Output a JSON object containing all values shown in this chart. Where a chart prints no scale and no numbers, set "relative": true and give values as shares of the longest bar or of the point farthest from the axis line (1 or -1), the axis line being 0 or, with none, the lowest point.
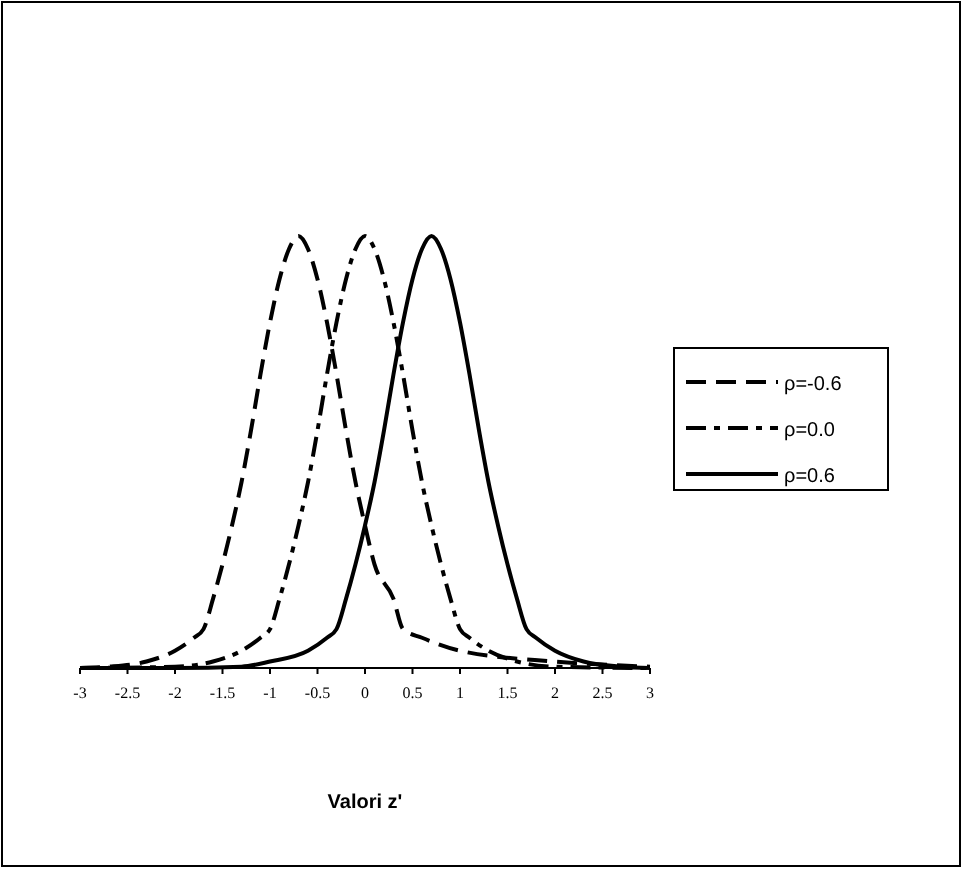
{
  "chart_data": {
    "type": "line",
    "relative": true,
    "xlabel": "Valori z'",
    "xlim": [
      -3,
      3
    ],
    "xticks": [
      -3,
      -2.5,
      -2,
      -1.5,
      -1,
      -0.5,
      0,
      0.5,
      1,
      1.5,
      2,
      2.5,
      3
    ],
    "legend": "right",
    "grid": false,
    "marker": "none",
    "series": [
      {
        "name": "ρ=-0.6",
        "color": "#000000",
        "line_style": "dashed",
        "x": [
          -3,
          -2.7,
          -2.3,
          -2,
          -1.8,
          -1.7,
          -1.6,
          -1.5,
          -1.4,
          -1.3,
          -1.2,
          -1.1,
          -1,
          -0.9,
          -0.8,
          -0.7,
          -0.6,
          -0.5,
          -0.4,
          -0.3,
          -0.2,
          -0.1,
          0,
          0.1,
          0.3,
          0.4,
          0.6,
          1,
          2,
          3
        ],
        "values": [
          0,
          0.003,
          0.015,
          0.04,
          0.07,
          0.09,
          0.16,
          0.24,
          0.33,
          0.43,
          0.55,
          0.68,
          0.8,
          0.9,
          0.97,
          1,
          0.97,
          0.9,
          0.8,
          0.68,
          0.55,
          0.43,
          0.33,
          0.24,
          0.16,
          0.09,
          0.07,
          0.04,
          0.015,
          0.003
        ]
      },
      {
        "name": "ρ=0.0",
        "color": "#000000",
        "line_style": "dashdot",
        "x": [
          -3,
          -2,
          -1.6,
          -1.3,
          -1.1,
          -1,
          -0.9,
          -0.8,
          -0.7,
          -0.6,
          -0.5,
          -0.4,
          -0.3,
          -0.2,
          -0.1,
          0,
          0.1,
          0.2,
          0.3,
          0.4,
          0.5,
          0.6,
          0.7,
          0.8,
          0.9,
          1,
          1.1,
          1.3,
          1.6,
          2,
          3
        ],
        "values": [
          0,
          0.003,
          0.015,
          0.04,
          0.07,
          0.09,
          0.16,
          0.24,
          0.33,
          0.43,
          0.55,
          0.68,
          0.8,
          0.9,
          0.97,
          1,
          0.97,
          0.9,
          0.8,
          0.68,
          0.55,
          0.43,
          0.33,
          0.24,
          0.16,
          0.09,
          0.07,
          0.04,
          0.015,
          0.003,
          0
        ]
      },
      {
        "name": "ρ=0.6",
        "color": "#000000",
        "line_style": "solid",
        "x": [
          -3,
          -2,
          -1.3,
          -1,
          -0.6,
          -0.4,
          -0.3,
          -0.2,
          -0.1,
          0,
          0.1,
          0.2,
          0.3,
          0.4,
          0.5,
          0.6,
          0.7,
          0.8,
          0.9,
          1,
          1.1,
          1.2,
          1.3,
          1.4,
          1.5,
          1.6,
          1.7,
          1.8,
          2,
          2.3,
          2.7,
          3
        ],
        "values": [
          0,
          0,
          0.003,
          0.015,
          0.04,
          0.07,
          0.09,
          0.16,
          0.24,
          0.33,
          0.43,
          0.55,
          0.68,
          0.8,
          0.9,
          0.97,
          1,
          0.97,
          0.9,
          0.8,
          0.68,
          0.55,
          0.43,
          0.33,
          0.24,
          0.16,
          0.09,
          0.07,
          0.04,
          0.015,
          0.003,
          0
        ]
      }
    ]
  }
}
